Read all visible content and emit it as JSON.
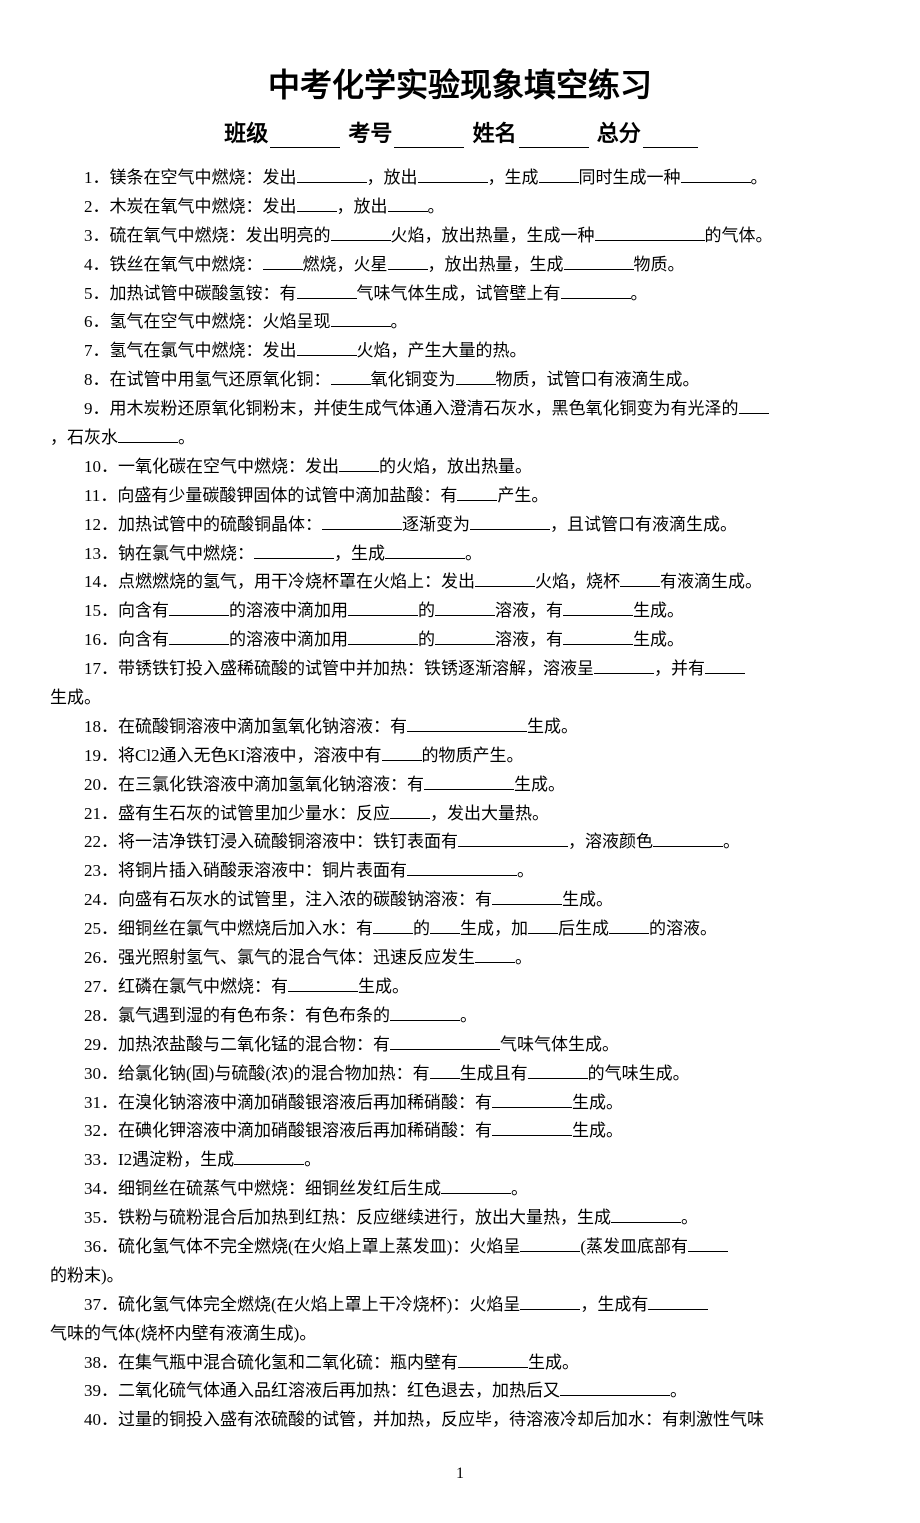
{
  "title": "中考化学实验现象填空练习",
  "header": {
    "class_label": "班级",
    "exam_no_label": "考号",
    "name_label": "姓名",
    "total_label": "总分"
  },
  "questions": {
    "q1": {
      "num": "1．",
      "t1": "镁条在空气中燃烧：发出",
      "t2": "，放出",
      "t3": "，生成",
      "t4": "同时生成一种",
      "t5": "。"
    },
    "q2": {
      "num": "2．",
      "t1": "木炭在氧气中燃烧：发出",
      "t2": "，放出",
      "t3": "。"
    },
    "q3": {
      "num": "3．",
      "t1": "硫在氧气中燃烧：发出明亮的",
      "t2": "火焰，放出热量，生成一种",
      "t3": "的气体。"
    },
    "q4": {
      "num": "4．",
      "t1": "铁丝在氧气中燃烧：",
      "t2": "燃烧，火星",
      "t3": "，放出热量，生成",
      "t4": "物质。"
    },
    "q5": {
      "num": "5．",
      "t1": "加热试管中碳酸氢铵：有",
      "t2": "气味气体生成，试管壁上有",
      "t3": "。"
    },
    "q6": {
      "num": "6．",
      "t1": "氢气在空气中燃烧：火焰呈现",
      "t2": "。"
    },
    "q7": {
      "num": "7．",
      "t1": "氢气在氯气中燃烧：发出",
      "t2": "火焰，产生大量的热。"
    },
    "q8": {
      "num": "8．",
      "t1": "在试管中用氢气还原氧化铜：",
      "t2": "氧化铜变为",
      "t3": "物质，试管口有液滴生成。"
    },
    "q9": {
      "num": "9．",
      "t1": "用木炭粉还原氧化铜粉末，并使生成气体通入澄清石灰水，黑色氧化铜变为有光泽的",
      "cont": "，石灰水",
      "t2": "。"
    },
    "q10": {
      "num": "10．",
      "t1": "一氧化碳在空气中燃烧：发出",
      "t2": "的火焰，放出热量。"
    },
    "q11": {
      "num": "11．",
      "t1": "向盛有少量碳酸钾固体的试管中滴加盐酸：有",
      "t2": "产生。"
    },
    "q12": {
      "num": "12．",
      "t1": "加热试管中的硫酸铜晶体：",
      "t2": "逐渐变为",
      "t3": "，且试管口有液滴生成。"
    },
    "q13": {
      "num": "13．",
      "t1": "钠在氯气中燃烧：",
      "t2": "，生成",
      "t3": "。"
    },
    "q14": {
      "num": "14．",
      "t1": "点燃燃烧的氢气，用干冷烧杯罩在火焰上：发出",
      "t2": "火焰，烧杯",
      "t3": "有液滴生成。"
    },
    "q15": {
      "num": "15．",
      "t1": "向含有",
      "t2": "的溶液中滴加用",
      "t3": "的",
      "t4": "溶液，有",
      "t5": "生成。"
    },
    "q16": {
      "num": "16．",
      "t1": "向含有",
      "t2": "的溶液中滴加用",
      "t3": "的",
      "t4": "溶液，有",
      "t5": "生成。"
    },
    "q17": {
      "num": "17．",
      "t1": "带锈铁钉投入盛稀硫酸的试管中并加热：铁锈逐渐溶解，溶液呈",
      "t2": "，并有",
      "cont": "生成。"
    },
    "q18": {
      "num": "18．",
      "t1": "在硫酸铜溶液中滴加氢氧化钠溶液：有",
      "t2": "生成。"
    },
    "q19": {
      "num": "19．",
      "t1": "将Cl2通入无色KI溶液中，溶液中有",
      "t2": "的物质产生。"
    },
    "q20": {
      "num": "20．",
      "t1": "在三氯化铁溶液中滴加氢氧化钠溶液：有",
      "t2": "生成。"
    },
    "q21": {
      "num": "21．",
      "t1": "盛有生石灰的试管里加少量水：反应",
      "t2": "，发出大量热。"
    },
    "q22": {
      "num": "22．",
      "t1": "将一洁净铁钉浸入硫酸铜溶液中：铁钉表面有",
      "t2": "，溶液颜色",
      "t3": "。"
    },
    "q23": {
      "num": "23．",
      "t1": "将铜片插入硝酸汞溶液中：铜片表面有",
      "t2": "。"
    },
    "q24": {
      "num": "24．",
      "t1": "向盛有石灰水的试管里，注入浓的碳酸钠溶液：有",
      "t2": "生成。"
    },
    "q25": {
      "num": "25．",
      "t1": "细铜丝在氯气中燃烧后加入水：有",
      "t2": "的",
      "t3": "生成，加",
      "t4": "后生成",
      "t5": "的溶液。"
    },
    "q26": {
      "num": "26．",
      "t1": "强光照射氢气、氯气的混合气体：迅速反应发生",
      "t2": "。"
    },
    "q27": {
      "num": "27．",
      "t1": "红磷在氯气中燃烧：有",
      "t2": "生成。"
    },
    "q28": {
      "num": "28．",
      "t1": "氯气遇到湿的有色布条：有色布条的",
      "t2": "。"
    },
    "q29": {
      "num": "29．",
      "t1": "加热浓盐酸与二氧化锰的混合物：有",
      "t2": "气味气体生成。"
    },
    "q30": {
      "num": "30．",
      "t1": "给氯化钠(固)与硫酸(浓)的混合物加热：有",
      "t2": "生成且有",
      "t3": "的气味生成。"
    },
    "q31": {
      "num": "31．",
      "t1": "在溴化钠溶液中滴加硝酸银溶液后再加稀硝酸：有",
      "t2": "生成。"
    },
    "q32": {
      "num": "32．",
      "t1": "在碘化钾溶液中滴加硝酸银溶液后再加稀硝酸：有",
      "t2": "生成。"
    },
    "q33": {
      "num": "33．",
      "t1": "I2遇淀粉，生成",
      "t2": "。"
    },
    "q34": {
      "num": "34．",
      "t1": "细铜丝在硫蒸气中燃烧：细铜丝发红后生成",
      "t2": "。"
    },
    "q35": {
      "num": "35．",
      "t1": "铁粉与硫粉混合后加热到红热：反应继续进行，放出大量热，生成",
      "t2": "。"
    },
    "q36": {
      "num": "36．",
      "t1": "硫化氢气体不完全燃烧(在火焰上罩上蒸发皿)：火焰呈",
      "t2": "(蒸发皿底部有",
      "cont": "的粉末)。"
    },
    "q37": {
      "num": "37．",
      "t1": "硫化氢气体完全燃烧(在火焰上罩上干冷烧杯)：火焰呈",
      "t2": "，生成有",
      "cont": "气味的气体(烧杯内壁有液滴生成)。"
    },
    "q38": {
      "num": "38．",
      "t1": "在集气瓶中混合硫化氢和二氧化硫：瓶内壁有",
      "t2": "生成。"
    },
    "q39": {
      "num": "39．",
      "t1": "二氧化硫气体通入品红溶液后再加热：红色退去，加热后又",
      "t2": "。"
    },
    "q40": {
      "num": "40．",
      "t1": "过量的铜投入盛有浓硫酸的试管，并加热，反应毕，待溶液冷却后加水：有刺激性气味"
    }
  },
  "page_number": "1"
}
